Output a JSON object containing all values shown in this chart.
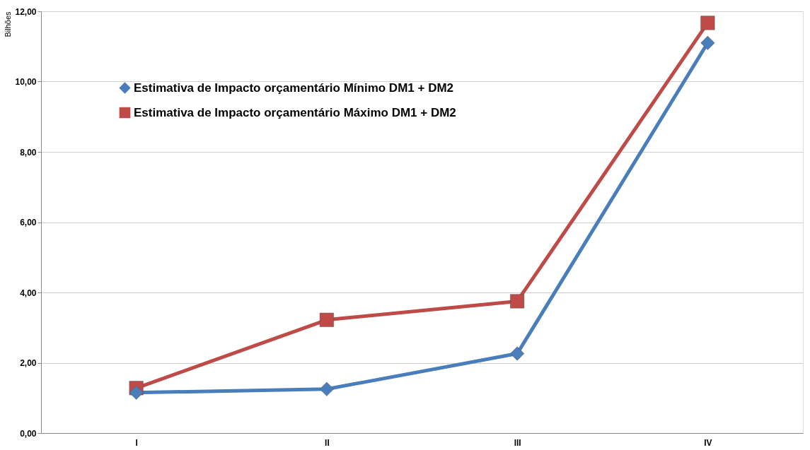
{
  "chart_data": {
    "type": "line",
    "ylabel": "Bilhões",
    "categories": [
      "I",
      "II",
      "III",
      "IV"
    ],
    "series": [
      {
        "name": "Estimativa de Impacto orçamentário Mínimo DM1 + DM2",
        "color": "#4a7ebb",
        "marker": "diamond",
        "values": [
          1.15,
          1.25,
          2.26,
          11.1
        ]
      },
      {
        "name": "Estimativa de Impacto orçamentário Máximo DM1 + DM2",
        "color": "#be4b48",
        "marker": "square",
        "values": [
          1.28,
          3.22,
          3.75,
          11.67
        ]
      }
    ],
    "ylim": [
      0,
      12
    ],
    "yticks": [
      {
        "value": 0,
        "label": "0,00"
      },
      {
        "value": 2,
        "label": "2,00"
      },
      {
        "value": 4,
        "label": "4,00"
      },
      {
        "value": 6,
        "label": "6,00"
      },
      {
        "value": 8,
        "label": "8,00"
      },
      {
        "value": 10,
        "label": "10,00"
      },
      {
        "value": 12,
        "label": "12,00"
      }
    ],
    "grid": "y",
    "legend": "top left",
    "line_style": "solid"
  }
}
